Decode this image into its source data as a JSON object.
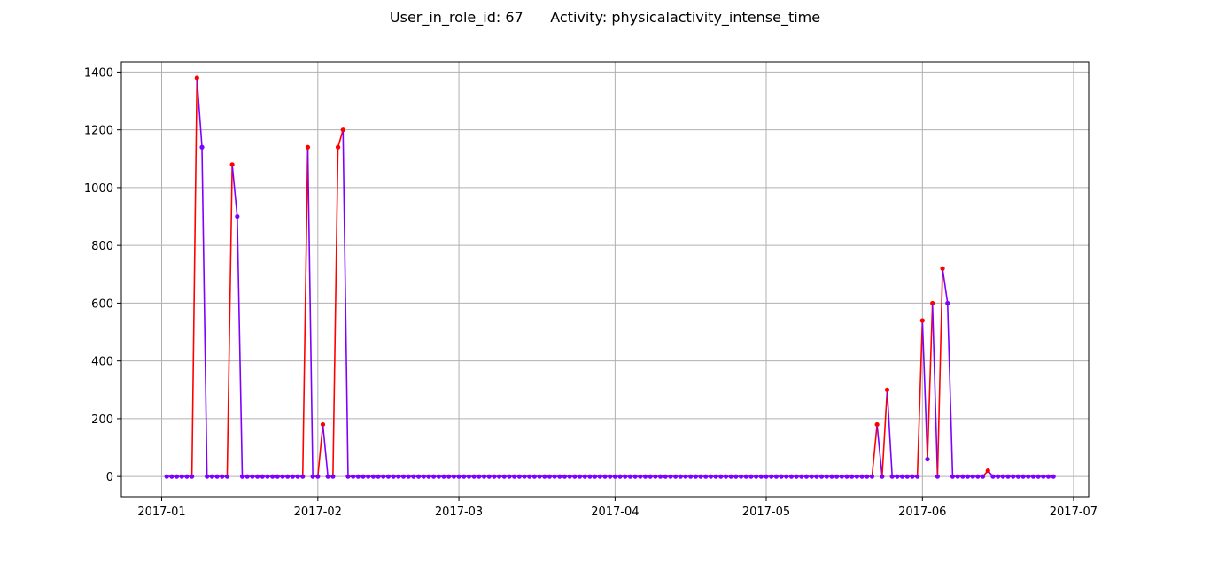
{
  "title": "User_in_role_id: 67      Activity: physicalactivity_intense_time",
  "chart_data": {
    "type": "line",
    "title": "User_in_role_id: 67      Activity: physicalactivity_intense_time",
    "xlabel": "",
    "ylabel": "",
    "grid": true,
    "legend": "none",
    "xlim": [
      "2016-12-24",
      "2017-07-04"
    ],
    "ylim": [
      -70,
      1435
    ],
    "x_ticks": [
      "2017-01",
      "2017-02",
      "2017-03",
      "2017-04",
      "2017-05",
      "2017-06",
      "2017-07"
    ],
    "y_ticks": [
      0,
      200,
      400,
      600,
      800,
      1000,
      1200,
      1400
    ],
    "colors": {
      "increase": "#ff0000",
      "decrease": "#8000ff"
    },
    "series": [
      {
        "x_start": "2017-01-02",
        "x_end": "2017-06-27",
        "step_days": 1,
        "values": [
          0,
          0,
          0,
          0,
          0,
          0,
          1380,
          1140,
          0,
          0,
          0,
          0,
          0,
          1080,
          900,
          0,
          0,
          0,
          0,
          0,
          0,
          0,
          0,
          0,
          0,
          0,
          0,
          0,
          1140,
          0,
          0,
          180,
          0,
          0,
          1140,
          1200,
          0,
          0,
          0,
          0,
          0,
          0,
          0,
          0,
          0,
          0,
          0,
          0,
          0,
          0,
          0,
          0,
          0,
          0,
          0,
          0,
          0,
          0,
          0,
          0,
          0,
          0,
          0,
          0,
          0,
          0,
          0,
          0,
          0,
          0,
          0,
          0,
          0,
          0,
          0,
          0,
          0,
          0,
          0,
          0,
          0,
          0,
          0,
          0,
          0,
          0,
          0,
          0,
          0,
          0,
          0,
          0,
          0,
          0,
          0,
          0,
          0,
          0,
          0,
          0,
          0,
          0,
          0,
          0,
          0,
          0,
          0,
          0,
          0,
          0,
          0,
          0,
          0,
          0,
          0,
          0,
          0,
          0,
          0,
          0,
          0,
          0,
          0,
          0,
          0,
          0,
          0,
          0,
          0,
          0,
          0,
          0,
          0,
          0,
          0,
          0,
          0,
          0,
          0,
          0,
          0,
          180,
          0,
          300,
          0,
          0,
          0,
          0,
          0,
          0,
          540,
          60,
          600,
          0,
          720,
          600,
          0,
          0,
          0,
          0,
          0,
          0,
          0,
          20,
          0,
          0,
          0,
          0,
          0,
          0,
          0,
          0,
          0,
          0,
          0,
          0,
          0
        ]
      }
    ]
  }
}
